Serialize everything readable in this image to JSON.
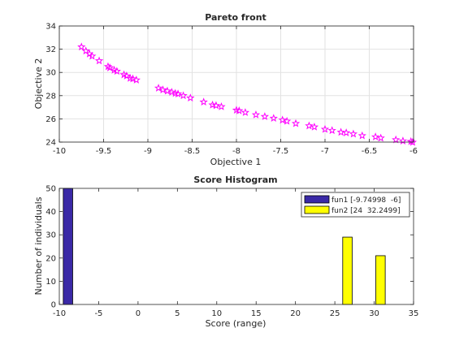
{
  "figure": {
    "background": "#ffffff"
  },
  "chart_data": [
    {
      "id": "pareto",
      "type": "scatter",
      "title": "Pareto front",
      "xlabel": "Objective 1",
      "ylabel": "Objective 2",
      "xlim": [
        -10,
        -6
      ],
      "ylim": [
        24,
        34
      ],
      "xticks": [
        -10,
        -9.5,
        -9,
        -8.5,
        -8,
        -7.5,
        -7,
        -6.5,
        -6
      ],
      "xtick_labels": [
        "-10",
        "-9.5",
        "-9",
        "-8.5",
        "-8",
        "-7.5",
        "-7",
        "-6.5",
        "-6"
      ],
      "yticks": [
        24,
        26,
        28,
        30,
        32,
        34
      ],
      "ytick_labels": [
        "24",
        "26",
        "28",
        "30",
        "32",
        "34"
      ],
      "grid": true,
      "marker": "pentagram",
      "color": "#ff00ff",
      "points": [
        [
          -9.75,
          32.2
        ],
        [
          -9.7,
          31.85
        ],
        [
          -9.66,
          31.6
        ],
        [
          -9.63,
          31.4
        ],
        [
          -9.55,
          31.0
        ],
        [
          -9.45,
          30.5
        ],
        [
          -9.43,
          30.4
        ],
        [
          -9.38,
          30.2
        ],
        [
          -9.35,
          30.1
        ],
        [
          -9.27,
          29.8
        ],
        [
          -9.24,
          29.7
        ],
        [
          -9.2,
          29.5
        ],
        [
          -9.17,
          29.45
        ],
        [
          -9.13,
          29.35
        ],
        [
          -8.88,
          28.65
        ],
        [
          -8.83,
          28.5
        ],
        [
          -8.78,
          28.4
        ],
        [
          -8.73,
          28.3
        ],
        [
          -8.69,
          28.2
        ],
        [
          -8.66,
          28.15
        ],
        [
          -8.6,
          28.0
        ],
        [
          -8.52,
          27.8
        ],
        [
          -8.37,
          27.45
        ],
        [
          -8.27,
          27.2
        ],
        [
          -8.23,
          27.15
        ],
        [
          -8.17,
          27.05
        ],
        [
          -8.0,
          26.75
        ],
        [
          -7.97,
          26.7
        ],
        [
          -7.9,
          26.55
        ],
        [
          -7.78,
          26.35
        ],
        [
          -7.68,
          26.2
        ],
        [
          -7.58,
          26.05
        ],
        [
          -7.48,
          25.9
        ],
        [
          -7.43,
          25.8
        ],
        [
          -7.33,
          25.6
        ],
        [
          -7.18,
          25.4
        ],
        [
          -7.12,
          25.3
        ],
        [
          -7.0,
          25.1
        ],
        [
          -6.92,
          25.0
        ],
        [
          -6.82,
          24.85
        ],
        [
          -6.76,
          24.8
        ],
        [
          -6.68,
          24.7
        ],
        [
          -6.58,
          24.55
        ],
        [
          -6.43,
          24.45
        ],
        [
          -6.37,
          24.35
        ],
        [
          -6.2,
          24.2
        ],
        [
          -6.12,
          24.1
        ],
        [
          -6.03,
          24.05
        ],
        [
          -6.01,
          23.98
        ]
      ]
    },
    {
      "id": "histogram",
      "type": "bar",
      "title": "Score Histogram",
      "xlabel": "Score (range)",
      "ylabel": "Number of individuals",
      "xlim": [
        -10,
        35
      ],
      "ylim": [
        0,
        50
      ],
      "xticks": [
        -10,
        -5,
        0,
        5,
        10,
        15,
        20,
        25,
        30,
        35
      ],
      "xtick_labels": [
        "-10",
        "-5",
        "0",
        "5",
        "10",
        "15",
        "20",
        "25",
        "30",
        "35"
      ],
      "yticks": [
        0,
        10,
        20,
        30,
        40,
        50
      ],
      "ytick_labels": [
        "0",
        "10",
        "20",
        "30",
        "40",
        "50"
      ],
      "grid": false,
      "legend_position": "top-right",
      "series": [
        {
          "name": "fun1 [-9.74998  -6]",
          "color": "#3a29a6",
          "bars": [
            {
              "x0": -9.5,
              "x1": -8.3,
              "value": 50
            }
          ]
        },
        {
          "name": "fun2 [24  32.2499]",
          "color": "#ffff00",
          "bars": [
            {
              "x0": 26.0,
              "x1": 27.2,
              "value": 29
            },
            {
              "x0": 30.2,
              "x1": 31.4,
              "value": 21
            }
          ]
        }
      ]
    }
  ]
}
